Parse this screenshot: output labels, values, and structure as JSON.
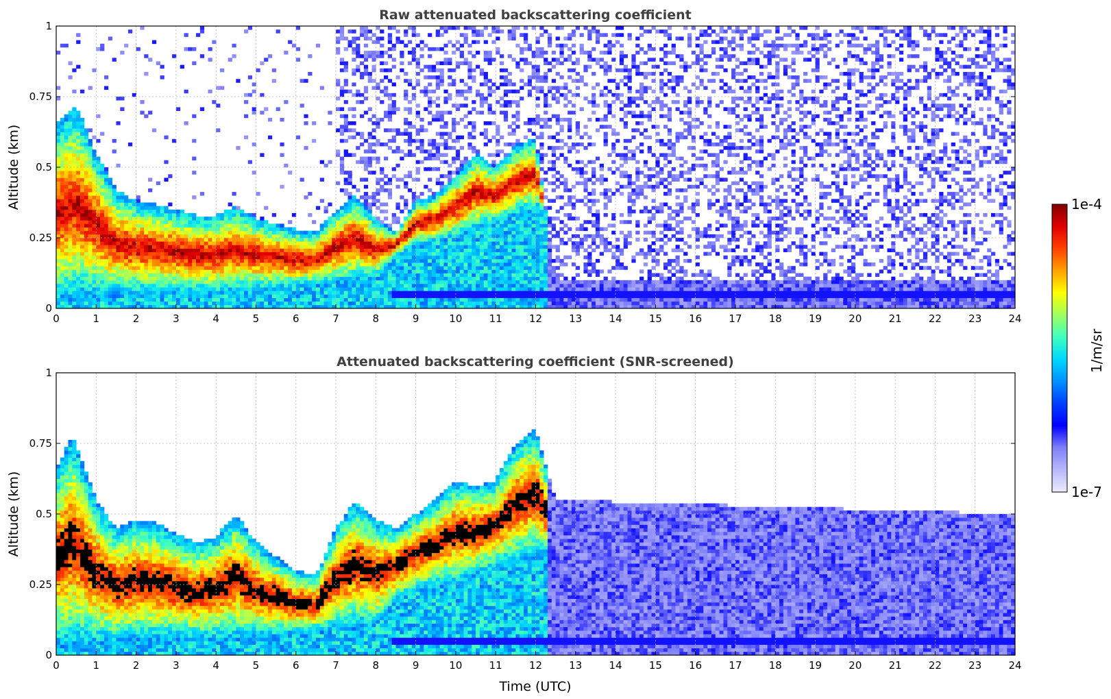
{
  "colorbar": {
    "label": "1/m/sr",
    "max_label": "1e-4",
    "min_label": "1e-7",
    "scale": "log",
    "colormap": "jet",
    "stops": [
      "#ececfd",
      "#b8b8fb",
      "#7f7ff9",
      "#0000ff",
      "#0040ff",
      "#0090ff",
      "#00d8ff",
      "#40ffc0",
      "#a0ff60",
      "#ffff00",
      "#ffa000",
      "#ff4000",
      "#e00000",
      "#800000"
    ]
  },
  "chart_data": [
    {
      "type": "heatmap",
      "title": "Raw attenuated backscattering coefficient",
      "xlabel": "",
      "ylabel": "Altitude (km)",
      "x_ticks": [
        "0",
        "1",
        "2",
        "3",
        "4",
        "5",
        "6",
        "7",
        "8",
        "9",
        "10",
        "11",
        "12",
        "13",
        "14",
        "15",
        "16",
        "17",
        "18",
        "19",
        "20",
        "21",
        "22",
        "23",
        "24"
      ],
      "y_ticks": [
        "0",
        "0.25",
        "0.5",
        "0.75",
        "1"
      ],
      "xlim": [
        0,
        24
      ],
      "ylim": [
        0,
        1
      ],
      "grid": true,
      "screened": false,
      "cloud_top_km": [
        [
          0,
          0.65
        ],
        [
          0.5,
          0.72
        ],
        [
          1,
          0.55
        ],
        [
          1.5,
          0.42
        ],
        [
          2,
          0.38
        ],
        [
          2.5,
          0.37
        ],
        [
          3,
          0.35
        ],
        [
          3.5,
          0.33
        ],
        [
          4,
          0.33
        ],
        [
          4.5,
          0.36
        ],
        [
          5,
          0.32
        ],
        [
          5.5,
          0.3
        ],
        [
          6,
          0.28
        ],
        [
          6.5,
          0.27
        ],
        [
          7,
          0.35
        ],
        [
          7.5,
          0.4
        ],
        [
          8,
          0.32
        ],
        [
          8.5,
          0.27
        ],
        [
          9,
          0.38
        ],
        [
          9.5,
          0.4
        ],
        [
          10,
          0.47
        ],
        [
          10.5,
          0.55
        ],
        [
          11,
          0.5
        ],
        [
          11.5,
          0.58
        ],
        [
          12,
          0.6
        ],
        [
          12.5,
          0.1
        ],
        [
          24,
          0.1
        ]
      ],
      "cloud_base_km": [
        [
          0,
          0.02
        ],
        [
          2,
          0.05
        ],
        [
          4,
          0.05
        ],
        [
          6,
          0.07
        ],
        [
          8,
          0.1
        ],
        [
          8.5,
          0.18
        ],
        [
          9,
          0.22
        ],
        [
          10,
          0.25
        ],
        [
          11,
          0.3
        ],
        [
          12,
          0.35
        ]
      ],
      "surface_layer_km": [
        0.04,
        0.06
      ]
    },
    {
      "type": "heatmap",
      "title": "Attenuated backscattering coefficient (SNR-screened)",
      "xlabel": "Time (UTC)",
      "ylabel": "Altitude (km)",
      "x_ticks": [
        "0",
        "1",
        "2",
        "3",
        "4",
        "5",
        "6",
        "7",
        "8",
        "9",
        "10",
        "11",
        "12",
        "13",
        "14",
        "15",
        "16",
        "17",
        "18",
        "19",
        "20",
        "21",
        "22",
        "23",
        "24"
      ],
      "y_ticks": [
        "0",
        "0.25",
        "0.5",
        "0.75",
        "1"
      ],
      "xlim": [
        0,
        24
      ],
      "ylim": [
        0,
        1
      ],
      "grid": true,
      "screened": true,
      "cloud_top_km": [
        [
          0,
          0.66
        ],
        [
          0.4,
          0.78
        ],
        [
          1,
          0.55
        ],
        [
          1.5,
          0.45
        ],
        [
          2,
          0.48
        ],
        [
          2.5,
          0.47
        ],
        [
          3,
          0.43
        ],
        [
          3.5,
          0.4
        ],
        [
          4,
          0.42
        ],
        [
          4.5,
          0.5
        ],
        [
          5,
          0.4
        ],
        [
          5.5,
          0.35
        ],
        [
          6,
          0.3
        ],
        [
          6.5,
          0.28
        ],
        [
          7,
          0.45
        ],
        [
          7.5,
          0.55
        ],
        [
          8,
          0.48
        ],
        [
          8.5,
          0.45
        ],
        [
          9,
          0.5
        ],
        [
          9.5,
          0.55
        ],
        [
          10,
          0.62
        ],
        [
          10.5,
          0.6
        ],
        [
          11,
          0.62
        ],
        [
          11.5,
          0.75
        ],
        [
          12,
          0.8
        ],
        [
          12.5,
          0.55
        ],
        [
          24,
          0.5
        ]
      ],
      "cloud_base_km": [
        [
          0,
          0.02
        ],
        [
          2,
          0.05
        ],
        [
          4,
          0.05
        ],
        [
          6,
          0.07
        ],
        [
          8,
          0.1
        ],
        [
          8.5,
          0.18
        ],
        [
          9,
          0.22
        ],
        [
          10,
          0.25
        ],
        [
          11,
          0.3
        ],
        [
          12,
          0.35
        ]
      ],
      "surface_layer_km": [
        0.04,
        0.06
      ]
    }
  ]
}
